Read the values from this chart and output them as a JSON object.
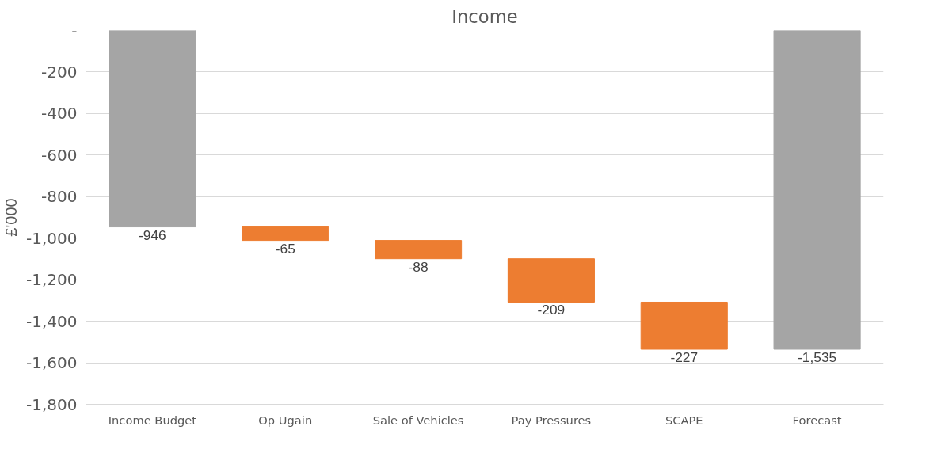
{
  "chart_data": {
    "type": "bar",
    "title": "Income",
    "ylabel": "£'000",
    "categories": [
      "Income Budget",
      "Op Ugain",
      "Sale of Vehicles",
      "Pay Pressures",
      "SCAPE",
      "Forecast"
    ],
    "values": [
      -946,
      -65,
      -88,
      -209,
      -227,
      -1535
    ],
    "base": [
      0,
      -946,
      -1011,
      -1099,
      -1308,
      0
    ],
    "colors": [
      "#a5a5a5",
      "#ed7d31",
      "#ed7d31",
      "#ed7d31",
      "#ed7d31",
      "#a5a5a5"
    ],
    "ylim": [
      -1800,
      0
    ],
    "yticks": [
      {
        "value": 0,
        "label": "-"
      },
      {
        "value": -200,
        "label": "-200"
      },
      {
        "value": -400,
        "label": "-400"
      },
      {
        "value": -600,
        "label": "-600"
      },
      {
        "value": -800,
        "label": "-800"
      },
      {
        "value": -1000,
        "label": "-1,000"
      },
      {
        "value": -1200,
        "label": "-1,200"
      },
      {
        "value": -1400,
        "label": "-1,400"
      },
      {
        "value": -1600,
        "label": "-1,600"
      },
      {
        "value": -1800,
        "label": "-1,800"
      }
    ],
    "value_labels": [
      "-946",
      "-65",
      "-88",
      "-209",
      "-227",
      "-1,535"
    ],
    "grid": "y"
  }
}
